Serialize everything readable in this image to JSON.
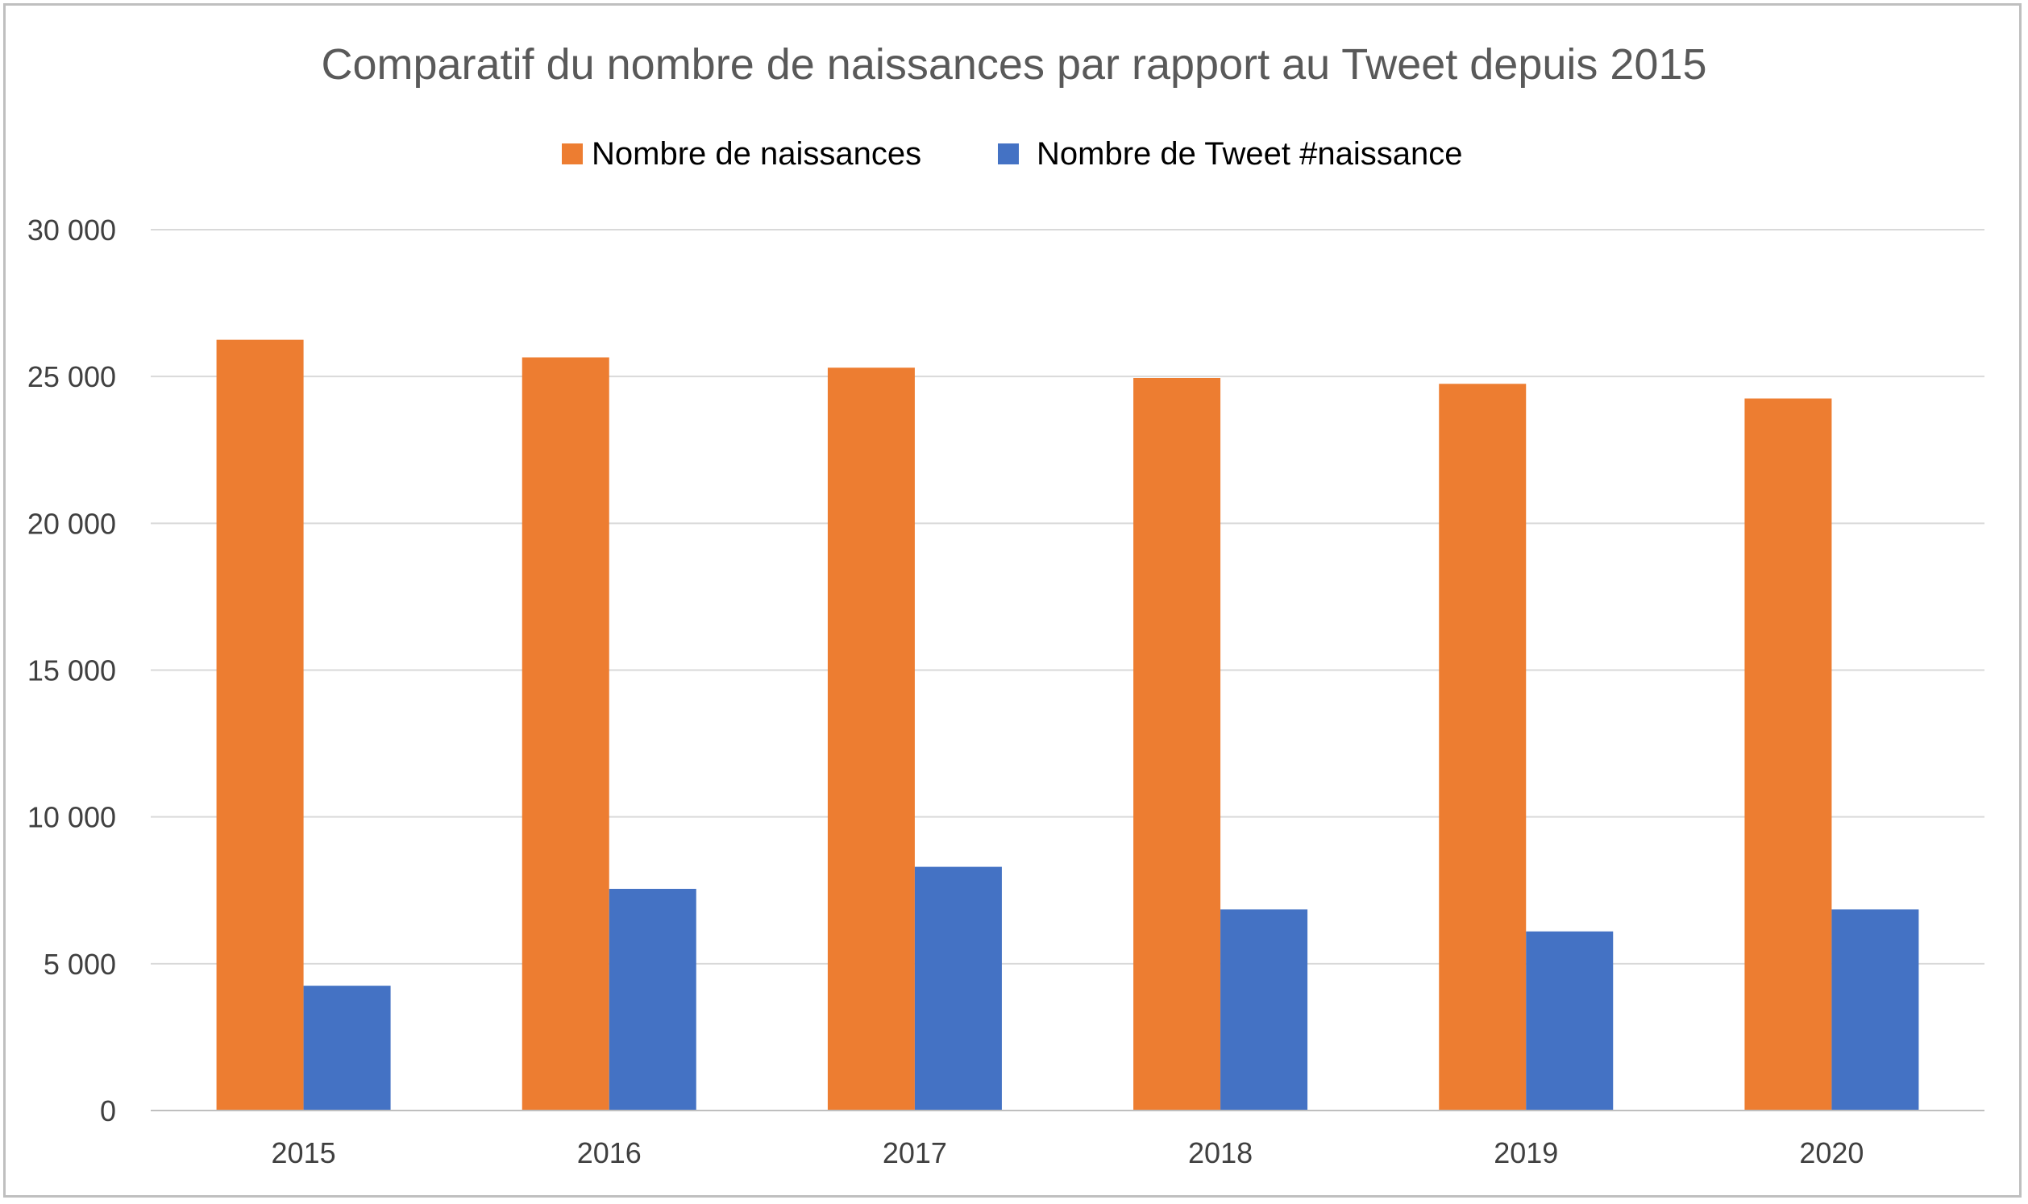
{
  "chart_data": {
    "type": "bar",
    "title": "Comparatif du nombre de naissances par rapport au Tweet depuis 2015",
    "categories": [
      "2015",
      "2016",
      "2017",
      "2018",
      "2019",
      "2020"
    ],
    "series": [
      {
        "name": "Nombre de naissances",
        "color": "#ED7D31",
        "values": [
          26250,
          25650,
          25300,
          24950,
          24750,
          24250
        ]
      },
      {
        "name": "Nombre de Tweet #naissance",
        "color": "#4472C4",
        "values": [
          4250,
          7550,
          8300,
          6850,
          6100,
          6850
        ]
      }
    ],
    "ylim": [
      0,
      30000
    ],
    "yticks": [
      0,
      5000,
      10000,
      15000,
      20000,
      25000,
      30000
    ],
    "ytick_labels": [
      "0",
      "5 000",
      "10 000",
      "15 000",
      "20 000",
      "25 000",
      "30 000"
    ],
    "grid": true,
    "legend_position": "top-center",
    "xlabel": "",
    "ylabel": ""
  }
}
